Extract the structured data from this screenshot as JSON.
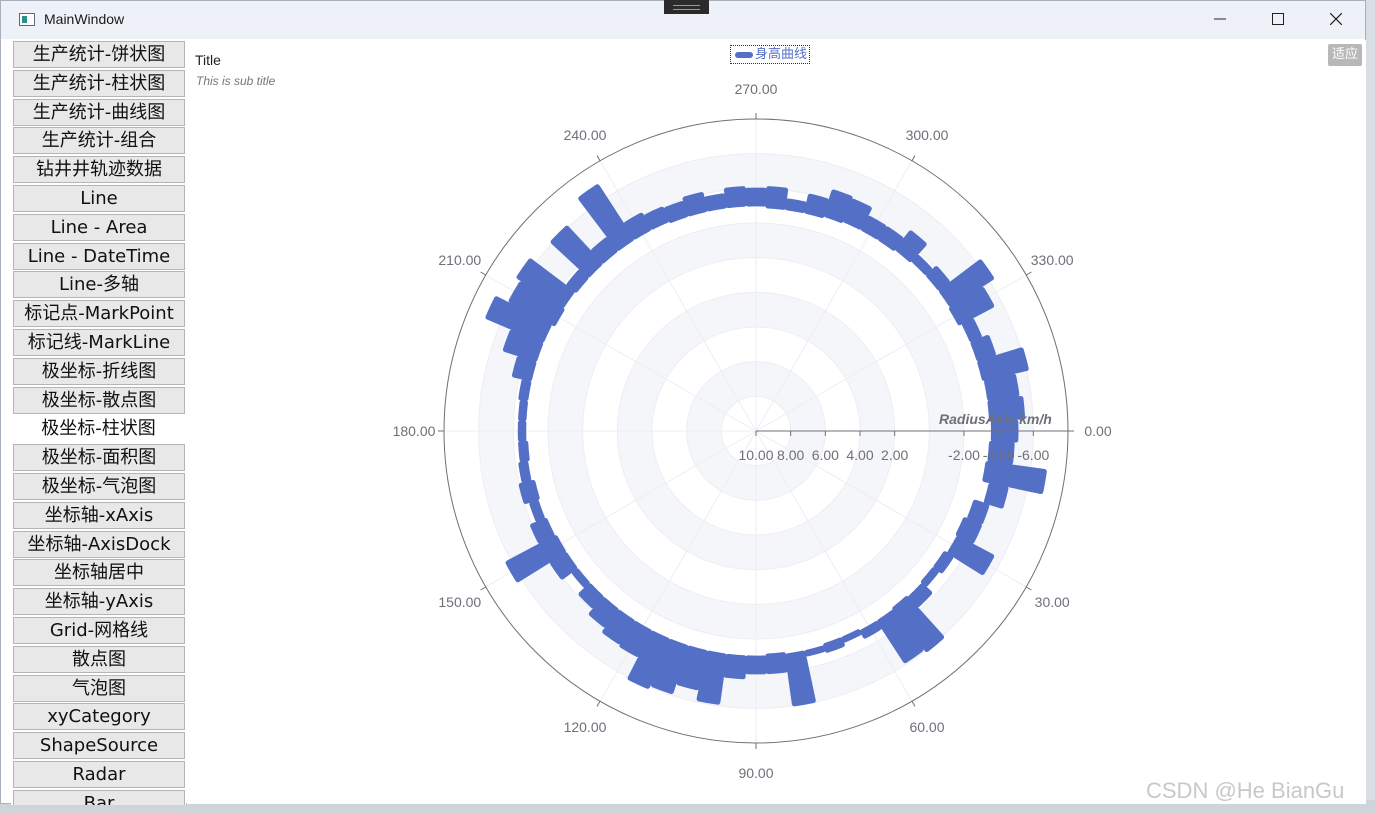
{
  "window": {
    "title": "MainWindow"
  },
  "sidebar": {
    "items": [
      {
        "label": "生产统计-饼状图"
      },
      {
        "label": "生产统计-柱状图"
      },
      {
        "label": "生产统计-曲线图"
      },
      {
        "label": "生产统计-组合"
      },
      {
        "label": "钻井井轨迹数据"
      },
      {
        "label": "Line"
      },
      {
        "label": "Line - Area"
      },
      {
        "label": "Line - DateTime"
      },
      {
        "label": "Line-多轴"
      },
      {
        "label": "标记点-MarkPoint"
      },
      {
        "label": "标记线-MarkLine"
      },
      {
        "label": "极坐标-折线图"
      },
      {
        "label": "极坐标-散点图"
      },
      {
        "label": "极坐标-柱状图",
        "active": true
      },
      {
        "label": "极坐标-面积图"
      },
      {
        "label": "极坐标-气泡图"
      },
      {
        "label": "坐标轴-xAxis"
      },
      {
        "label": "坐标轴-AxisDock"
      },
      {
        "label": "坐标轴居中"
      },
      {
        "label": "坐标轴-yAxis"
      },
      {
        "label": "Grid-网格线"
      },
      {
        "label": "散点图"
      },
      {
        "label": "气泡图"
      },
      {
        "label": "xyCategory"
      },
      {
        "label": "ShapeSource"
      },
      {
        "label": "Radar"
      },
      {
        "label": "Bar"
      }
    ]
  },
  "chart": {
    "title": "Title",
    "subtitle": "This is sub title",
    "fit_button": "适应",
    "legend": "身高曲线",
    "accent_color": "#5470c6"
  },
  "chart_data": {
    "type": "bar",
    "coordinate": "polar",
    "series": [
      {
        "name": "身高曲线"
      }
    ],
    "angle_axis": {
      "ticks": [
        "0.00",
        "30.00",
        "60.00",
        "90.00",
        "120.00",
        "150.00",
        "180.00",
        "210.00",
        "240.00",
        "270.00",
        "300.00",
        "330.00"
      ]
    },
    "radius_axis": {
      "name": "RadiusAxis km/h",
      "ticks": [
        "10.00",
        "8.00",
        "6.00",
        "4.00",
        "2.00",
        "-2.00",
        "-4.00",
        "-6.00"
      ],
      "range": [
        -8,
        10
      ]
    },
    "bars": [
      {
        "angle": 0,
        "start": -3.7,
        "end": -5.0
      },
      {
        "angle": 5,
        "start": -3.6,
        "end": -4.8
      },
      {
        "angle": 10,
        "start": -3.5,
        "end": -6.8
      },
      {
        "angle": 15,
        "start": -3.9,
        "end": -4.8
      },
      {
        "angle": 20,
        "start": -3.3,
        "end": -4.0
      },
      {
        "angle": 25,
        "start": -3.1,
        "end": -4.0
      },
      {
        "angle": 30,
        "start": -3.2,
        "end": -5.4
      },
      {
        "angle": 35,
        "start": -3.0,
        "end": -3.4
      },
      {
        "angle": 40,
        "start": -3.0,
        "end": -3.2
      },
      {
        "angle": 45,
        "start": -3.1,
        "end": -3.7
      },
      {
        "angle": 50,
        "start": -3.0,
        "end": -6.0
      },
      {
        "angle": 55,
        "start": -3.1,
        "end": -5.8
      },
      {
        "angle": 60,
        "start": -3.1,
        "end": -3.4
      },
      {
        "angle": 65,
        "start": -3.0,
        "end": -3.1
      },
      {
        "angle": 70,
        "start": -3.0,
        "end": -3.3
      },
      {
        "angle": 75,
        "start": -3.1,
        "end": -3.2
      },
      {
        "angle": 80,
        "start": -3.1,
        "end": -5.9
      },
      {
        "angle": 85,
        "start": -3.0,
        "end": -3.9
      },
      {
        "angle": 90,
        "start": -3.1,
        "end": -3.9
      },
      {
        "angle": 95,
        "start": -3.1,
        "end": -4.2
      },
      {
        "angle": 100,
        "start": -3.1,
        "end": -5.8
      },
      {
        "angle": 105,
        "start": -3.1,
        "end": -5.2
      },
      {
        "angle": 110,
        "start": -3.1,
        "end": -5.8
      },
      {
        "angle": 115,
        "start": -3.1,
        "end": -6.0
      },
      {
        "angle": 120,
        "start": -3.1,
        "end": -4.6
      },
      {
        "angle": 125,
        "start": -3.1,
        "end": -4.5
      },
      {
        "angle": 130,
        "start": -3.1,
        "end": -4.2
      },
      {
        "angle": 135,
        "start": -3.1,
        "end": -3.8
      },
      {
        "angle": 140,
        "start": -3.1,
        "end": -3.3
      },
      {
        "angle": 145,
        "start": -3.1,
        "end": -4.0
      },
      {
        "angle": 150,
        "start": -3.1,
        "end": -6.2
      },
      {
        "angle": 155,
        "start": -3.2,
        "end": -4.0
      },
      {
        "angle": 160,
        "start": -3.3,
        "end": -3.6
      },
      {
        "angle": 165,
        "start": -3.2,
        "end": -3.9
      },
      {
        "angle": 170,
        "start": -3.4,
        "end": -3.7
      },
      {
        "angle": 175,
        "start": -3.3,
        "end": -3.6
      },
      {
        "angle": 180,
        "start": -3.4,
        "end": -3.6
      },
      {
        "angle": 185,
        "start": -3.4,
        "end": -3.6
      },
      {
        "angle": 190,
        "start": -3.4,
        "end": -3.7
      },
      {
        "angle": 195,
        "start": -3.4,
        "end": -4.3
      },
      {
        "angle": 200,
        "start": -3.4,
        "end": -5.2
      },
      {
        "angle": 205,
        "start": -3.4,
        "end": -6.8
      },
      {
        "angle": 210,
        "start": -3.2,
        "end": -6.0
      },
      {
        "angle": 215,
        "start": -3.3,
        "end": -6.3
      },
      {
        "angle": 220,
        "start": -3.2,
        "end": -3.7
      },
      {
        "angle": 225,
        "start": -3.2,
        "end": -6.0
      },
      {
        "angle": 230,
        "start": -3.2,
        "end": -4.0
      },
      {
        "angle": 235,
        "start": -3.2,
        "end": -6.8
      },
      {
        "angle": 240,
        "start": -3.2,
        "end": -4.1
      },
      {
        "angle": 245,
        "start": -3.2,
        "end": -3.9
      },
      {
        "angle": 250,
        "start": -3.1,
        "end": -3.8
      },
      {
        "angle": 255,
        "start": -3.1,
        "end": -4.0
      },
      {
        "angle": 260,
        "start": -3.1,
        "end": -3.7
      },
      {
        "angle": 265,
        "start": -3.1,
        "end": -4.0
      },
      {
        "angle": 270,
        "start": -3.1,
        "end": -3.9
      },
      {
        "angle": 275,
        "start": -3.0,
        "end": -4.0
      },
      {
        "angle": 280,
        "start": -3.0,
        "end": -3.4
      },
      {
        "angle": 285,
        "start": -3.0,
        "end": -3.9
      },
      {
        "angle": 290,
        "start": -3.1,
        "end": -4.5
      },
      {
        "angle": 295,
        "start": -3.2,
        "end": -4.4
      },
      {
        "angle": 300,
        "start": -3.2,
        "end": -3.9
      },
      {
        "angle": 305,
        "start": -3.2,
        "end": -3.9
      },
      {
        "angle": 310,
        "start": -3.3,
        "end": -4.5
      },
      {
        "angle": 315,
        "start": -3.4,
        "end": -3.7
      },
      {
        "angle": 320,
        "start": -3.4,
        "end": -4.0
      },
      {
        "angle": 325,
        "start": -3.4,
        "end": -6.2
      },
      {
        "angle": 330,
        "start": -3.3,
        "end": -5.4
      },
      {
        "angle": 335,
        "start": -3.5,
        "end": -4.0
      },
      {
        "angle": 340,
        "start": -3.5,
        "end": -4.4
      },
      {
        "angle": 345,
        "start": -3.5,
        "end": -6.0
      },
      {
        "angle": 350,
        "start": -3.6,
        "end": -5.2
      },
      {
        "angle": 355,
        "start": -3.6,
        "end": -5.4
      }
    ]
  },
  "watermark": "CSDN @He BianGu"
}
